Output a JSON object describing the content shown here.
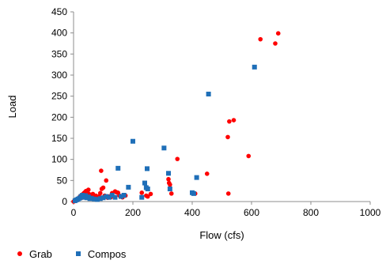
{
  "chart_data": {
    "type": "scatter",
    "title": "",
    "xlabel": "Flow (cfs)",
    "ylabel": "Load",
    "xlim": [
      0,
      1000
    ],
    "ylim": [
      0,
      450
    ],
    "xticks": [
      "0",
      "200",
      "400",
      "600",
      "800",
      "1000"
    ],
    "yticks": [
      "0",
      "50",
      "100",
      "150",
      "200",
      "250",
      "300",
      "350",
      "400",
      "450"
    ],
    "grid": false,
    "legend_position": "bottom-left",
    "series": [
      {
        "name": "Grab",
        "marker": "circle",
        "color": "#ff0000",
        "points": [
          [
            0,
            0
          ],
          [
            3,
            1
          ],
          [
            5,
            2
          ],
          [
            8,
            3
          ],
          [
            10,
            4
          ],
          [
            12,
            6
          ],
          [
            15,
            5
          ],
          [
            18,
            8
          ],
          [
            20,
            10
          ],
          [
            22,
            12
          ],
          [
            25,
            14
          ],
          [
            28,
            9
          ],
          [
            30,
            16
          ],
          [
            32,
            18
          ],
          [
            35,
            20
          ],
          [
            38,
            22
          ],
          [
            40,
            12
          ],
          [
            42,
            25
          ],
          [
            45,
            15
          ],
          [
            48,
            26
          ],
          [
            50,
            28
          ],
          [
            52,
            18
          ],
          [
            55,
            10
          ],
          [
            60,
            15
          ],
          [
            65,
            18
          ],
          [
            70,
            10
          ],
          [
            75,
            14
          ],
          [
            80,
            9
          ],
          [
            85,
            12
          ],
          [
            90,
            20
          ],
          [
            93,
            73
          ],
          [
            95,
            30
          ],
          [
            100,
            33
          ],
          [
            105,
            14
          ],
          [
            110,
            50
          ],
          [
            115,
            9
          ],
          [
            120,
            12
          ],
          [
            125,
            10
          ],
          [
            130,
            20
          ],
          [
            140,
            24
          ],
          [
            145,
            22
          ],
          [
            150,
            21
          ],
          [
            155,
            14
          ],
          [
            160,
            12
          ],
          [
            165,
            10
          ],
          [
            175,
            14
          ],
          [
            230,
            21
          ],
          [
            245,
            14
          ],
          [
            250,
            12
          ],
          [
            260,
            18
          ],
          [
            320,
            53
          ],
          [
            322,
            44
          ],
          [
            325,
            40
          ],
          [
            330,
            19
          ],
          [
            350,
            101
          ],
          [
            410,
            19
          ],
          [
            450,
            66
          ],
          [
            520,
            153
          ],
          [
            522,
            19
          ],
          [
            525,
            190
          ],
          [
            540,
            193
          ],
          [
            590,
            108
          ],
          [
            630,
            385
          ],
          [
            680,
            375
          ],
          [
            690,
            399
          ]
        ]
      },
      {
        "name": "Compos",
        "marker": "square",
        "color": "#1f6fb8",
        "points": [
          [
            5,
            2
          ],
          [
            10,
            4
          ],
          [
            15,
            6
          ],
          [
            20,
            8
          ],
          [
            25,
            12
          ],
          [
            30,
            15
          ],
          [
            35,
            10
          ],
          [
            40,
            14
          ],
          [
            45,
            9
          ],
          [
            50,
            11
          ],
          [
            55,
            7
          ],
          [
            60,
            8
          ],
          [
            70,
            6
          ],
          [
            80,
            5
          ],
          [
            90,
            7
          ],
          [
            100,
            9
          ],
          [
            110,
            12
          ],
          [
            120,
            10
          ],
          [
            130,
            15
          ],
          [
            140,
            10
          ],
          [
            150,
            79
          ],
          [
            160,
            12
          ],
          [
            170,
            15
          ],
          [
            185,
            34
          ],
          [
            200,
            143
          ],
          [
            230,
            10
          ],
          [
            240,
            44
          ],
          [
            245,
            33
          ],
          [
            248,
            78
          ],
          [
            250,
            30
          ],
          [
            305,
            127
          ],
          [
            320,
            67
          ],
          [
            325,
            30
          ],
          [
            400,
            21
          ],
          [
            405,
            19
          ],
          [
            415,
            57
          ],
          [
            455,
            255
          ],
          [
            610,
            319
          ]
        ]
      }
    ]
  }
}
